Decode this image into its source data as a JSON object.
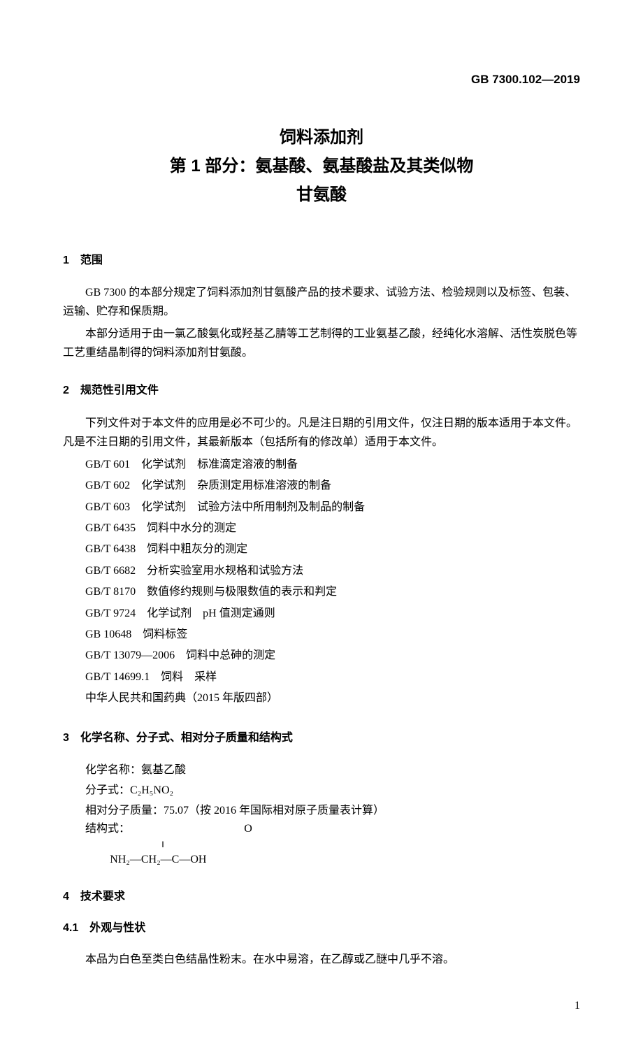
{
  "header": {
    "code": "GB 7300.102—2019"
  },
  "title": {
    "line1": "饲料添加剂",
    "line2": "第 1 部分：氨基酸、氨基酸盐及其类似物",
    "line3": "甘氨酸"
  },
  "section1": {
    "heading": "1　范围",
    "para1": "GB 7300 的本部分规定了饲料添加剂甘氨酸产品的技术要求、试验方法、检验规则以及标签、包装、运输、贮存和保质期。",
    "para2": "本部分适用于由一氯乙酸氨化或羟基乙腈等工艺制得的工业氨基乙酸，经纯化水溶解、活性炭脱色等工艺重结晶制得的饲料添加剂甘氨酸。"
  },
  "section2": {
    "heading": "2　规范性引用文件",
    "para1": "下列文件对于本文件的应用是必不可少的。凡是注日期的引用文件，仅注日期的版本适用于本文件。凡是不注日期的引用文件，其最新版本（包括所有的修改单）适用于本文件。",
    "refs": [
      "GB/T 601　化学试剂　标准滴定溶液的制备",
      "GB/T 602　化学试剂　杂质测定用标准溶液的制备",
      "GB/T 603　化学试剂　试验方法中所用制剂及制品的制备",
      "GB/T 6435　饲料中水分的测定",
      "GB/T 6438　饲料中粗灰分的测定",
      "GB/T 6682　分析实验室用水规格和试验方法",
      "GB/T 8170　数值修约规则与极限数值的表示和判定",
      "GB/T 9724　化学试剂　pH 值测定通则",
      "GB 10648　饲料标签",
      "GB/T 13079—2006　饲料中总砷的测定",
      "GB/T 14699.1　饲料　采样",
      "中华人民共和国药典（2015 年版四部）"
    ]
  },
  "section3": {
    "heading": "3　化学名称、分子式、相对分子质量和结构式",
    "chem_name": "化学名称：氨基乙酸",
    "formula_label": "分子式：C₂H₅NO₂",
    "mol_mass": "相对分子质量：75.07（按 2016 年国际相对原子质量表计算）",
    "structure_label": "结构式：",
    "structure_o": "O",
    "structure_bond": "‖",
    "structure_formula": "NH₂—CH₂—C—OH"
  },
  "section4": {
    "heading": "4　技术要求",
    "sub1_heading": "4.1　外观与性状",
    "sub1_para": "本品为白色至类白色结晶性粉末。在水中易溶，在乙醇或乙醚中几乎不溶。"
  },
  "page_number": "1"
}
